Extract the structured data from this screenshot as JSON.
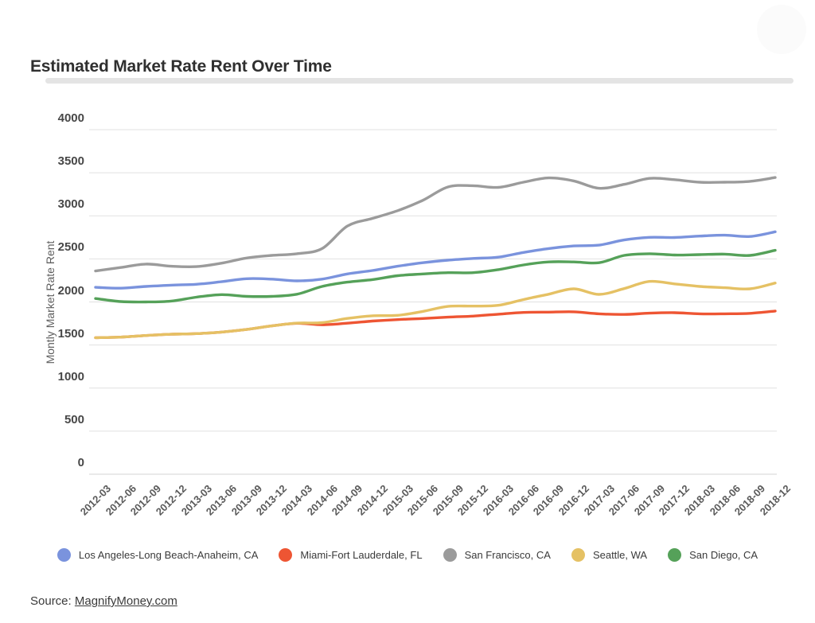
{
  "page": {
    "title": "Estimated Market Rate Rent Over Time",
    "source_prefix": "Source: ",
    "source_link": "MagnifyMoney.com"
  },
  "chart_data": {
    "type": "line",
    "title": "Estimated Market Rate Rent Over Time",
    "xlabel": "",
    "ylabel": "Montly Market Rate Rent",
    "ylim": [
      0,
      4000
    ],
    "yticks": [
      0,
      500,
      1000,
      1500,
      2000,
      2500,
      3000,
      3500,
      4000
    ],
    "grid": "horizontal",
    "legend_position": "bottom",
    "gridline_color": "#e1e1e1",
    "categories": [
      "2012-03",
      "2012-06",
      "2012-09",
      "2012-12",
      "2013-03",
      "2013-06",
      "2013-09",
      "2013-12",
      "2014-03",
      "2014-06",
      "2014-09",
      "2014-12",
      "2015-03",
      "2015-06",
      "2015-09",
      "2015-12",
      "2016-03",
      "2016-06",
      "2016-09",
      "2016-12",
      "2017-03",
      "2017-06",
      "2017-09",
      "2017-12",
      "2018-03",
      "2018-06",
      "2018-09",
      "2018-12"
    ],
    "series": [
      {
        "name": "Los Angeles-Long Beach-Anaheim, CA",
        "color": "#7a93dd",
        "values": [
          2170,
          2160,
          2180,
          2195,
          2205,
          2235,
          2270,
          2265,
          2245,
          2265,
          2325,
          2365,
          2415,
          2455,
          2485,
          2505,
          2520,
          2575,
          2620,
          2650,
          2660,
          2720,
          2750,
          2748,
          2765,
          2775,
          2760,
          2815
        ]
      },
      {
        "name": "Miami-Fort Lauderdale, FL",
        "color": "#ee5533",
        "values": [
          1585,
          1592,
          1610,
          1625,
          1632,
          1650,
          1680,
          1722,
          1752,
          1735,
          1753,
          1778,
          1795,
          1808,
          1824,
          1836,
          1858,
          1878,
          1882,
          1885,
          1862,
          1855,
          1870,
          1875,
          1862,
          1862,
          1868,
          1895
        ]
      },
      {
        "name": "San Francisco, CA",
        "color": "#9b9b9b",
        "values": [
          2360,
          2400,
          2440,
          2415,
          2410,
          2450,
          2510,
          2540,
          2560,
          2620,
          2880,
          2970,
          3060,
          3180,
          3335,
          3350,
          3330,
          3390,
          3440,
          3405,
          3320,
          3365,
          3435,
          3420,
          3390,
          3390,
          3400,
          3445
        ]
      },
      {
        "name": "Seattle, WA",
        "color": "#e5c164",
        "values": [
          1585,
          1592,
          1610,
          1625,
          1632,
          1650,
          1680,
          1722,
          1754,
          1760,
          1809,
          1839,
          1845,
          1890,
          1948,
          1952,
          1961,
          2028,
          2090,
          2152,
          2088,
          2155,
          2238,
          2210,
          2180,
          2165,
          2152,
          2220
        ]
      },
      {
        "name": "San Diego, CA",
        "color": "#55a159",
        "values": [
          2040,
          2005,
          2000,
          2010,
          2055,
          2085,
          2065,
          2065,
          2090,
          2180,
          2230,
          2260,
          2305,
          2325,
          2340,
          2340,
          2375,
          2430,
          2465,
          2465,
          2455,
          2540,
          2560,
          2545,
          2550,
          2555,
          2540,
          2600
        ]
      }
    ]
  }
}
